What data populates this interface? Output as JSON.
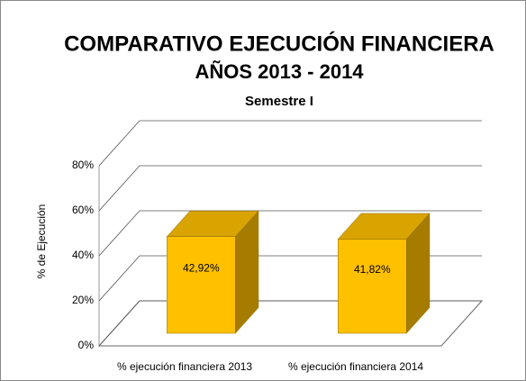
{
  "chart_data": {
    "type": "bar3d",
    "title": "COMPARATIVO EJECUCIÓN FINANCIERA",
    "subtitle": "AÑOS  2013 - 2014",
    "subtitle2": "Semestre I",
    "y_label": "% de Ejecución",
    "categories": [
      "% ejecución financiera 2013",
      "% ejecución financiera 2014"
    ],
    "values": [
      42.92,
      41.82
    ],
    "value_labels": [
      "42,92%",
      "41,82%"
    ],
    "color": "#ffc000",
    "ylim": [
      0,
      80
    ],
    "yticks": [
      {
        "value": 0,
        "label": "0%"
      },
      {
        "value": 20,
        "label": "20%"
      },
      {
        "value": 40,
        "label": "40%"
      },
      {
        "value": 60,
        "label": "60%"
      },
      {
        "value": 80,
        "label": "80%"
      }
    ],
    "grid": true
  }
}
